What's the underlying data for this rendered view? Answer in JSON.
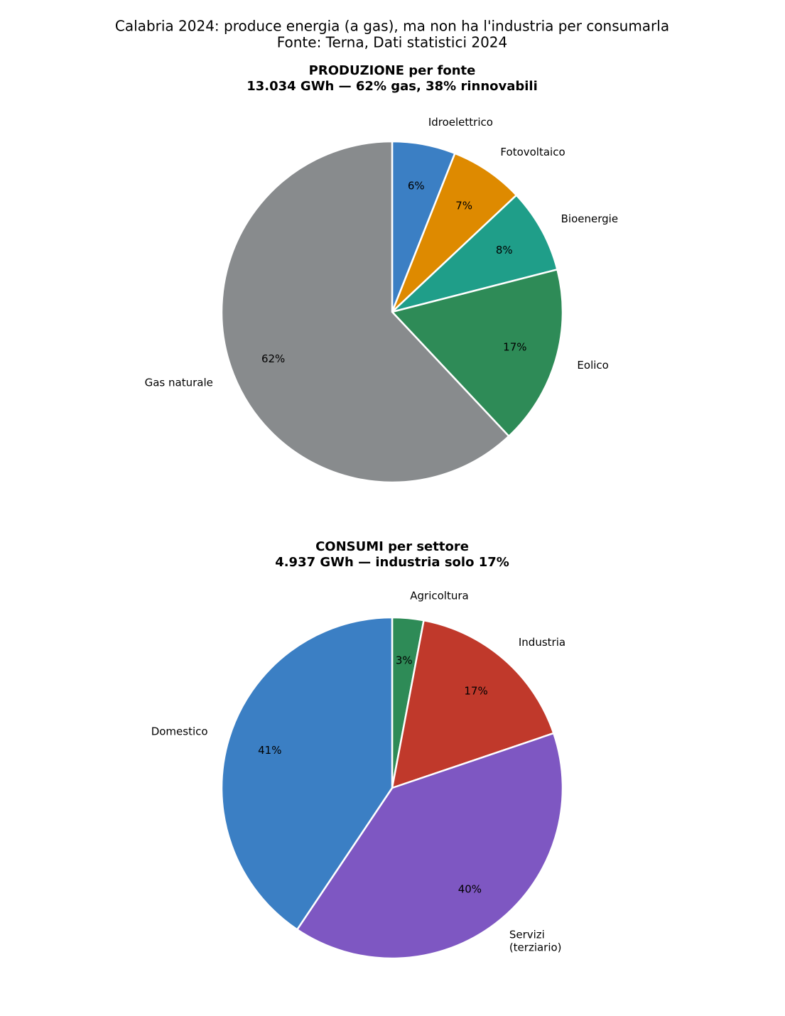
{
  "title": "Calabria 2024: produce energia (a gas), ma non ha l'industria per consumarla",
  "subtitle": "Fonte: Terna, Dati statistici 2024",
  "chart_data": [
    {
      "type": "pie",
      "title": "PRODUZIONE per fonte",
      "subtitle": "13.034 GWh — 62% gas, 38% rinnovabili",
      "categories": [
        "Idroelettrico",
        "Fotovoltaico",
        "Bioenergie",
        "Eolico",
        "Gas naturale"
      ],
      "values": [
        6,
        7,
        8,
        17,
        62
      ],
      "value_labels": [
        "6%",
        "7%",
        "8%",
        "17%",
        "62%"
      ],
      "colors": [
        "#3b7fc4",
        "#de8a00",
        "#1f9e89",
        "#2e8b57",
        "#888b8d"
      ]
    },
    {
      "type": "pie",
      "title": "CONSUMI per settore",
      "subtitle": "4.937 GWh — industria solo 17%",
      "categories": [
        "Agricoltura",
        "Industria",
        "Servizi\n(terziario)",
        "Domestico"
      ],
      "values": [
        3,
        17,
        40,
        41
      ],
      "value_labels": [
        "3%",
        "17%",
        "40%",
        "41%"
      ],
      "colors": [
        "#2e8b57",
        "#c0392b",
        "#7e57c2",
        "#3b7fc4"
      ]
    }
  ]
}
